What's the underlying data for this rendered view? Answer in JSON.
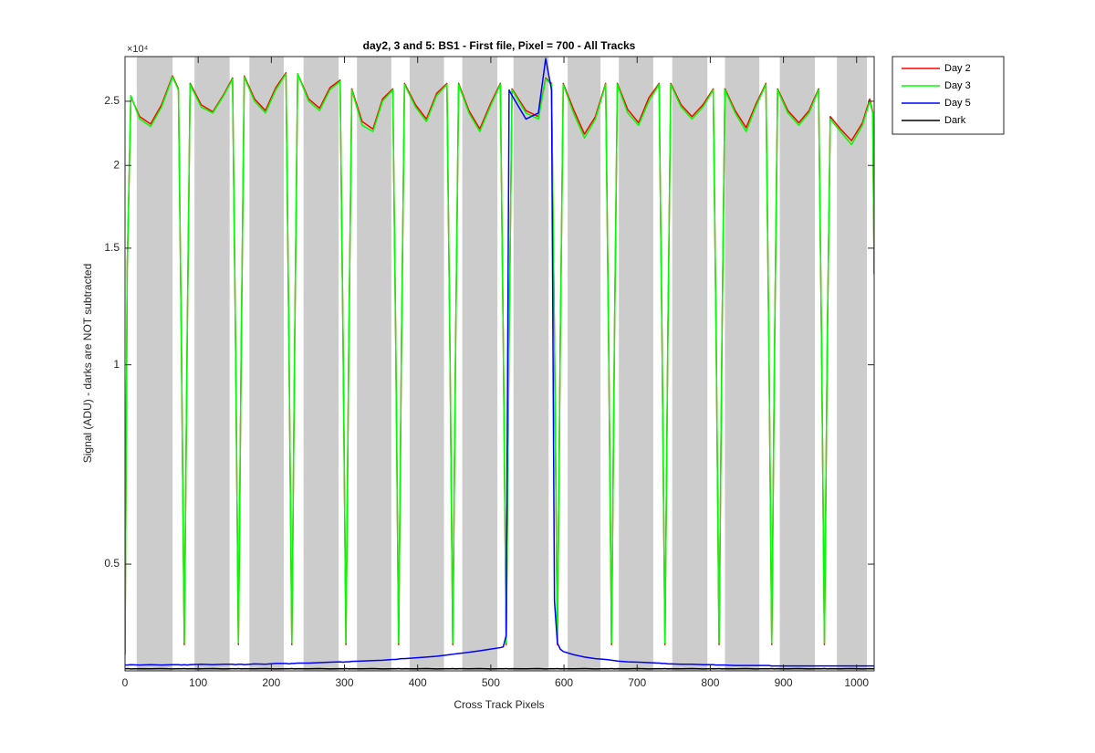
{
  "chart_data": {
    "type": "line",
    "title": "day2, 3 and 5: BS1 - First file, Pixel = 700 - All Tracks",
    "xlabel": "Cross Track Pixels",
    "ylabel": "Signal (ADU) - darks are NOT subtracted",
    "y_multiplier": "×10⁴",
    "log_y": true,
    "grid": false,
    "legend": "northeastoutside",
    "xlim": [
      0,
      1024
    ],
    "xticks": [
      0,
      100,
      200,
      300,
      400,
      500,
      600,
      700,
      800,
      900,
      1000
    ],
    "ylim": [
      3450,
      29200
    ],
    "yticks": [
      {
        "value": 5000,
        "label": "0.5"
      },
      {
        "value": 10000,
        "label": "1"
      },
      {
        "value": 15000,
        "label": "1.5"
      },
      {
        "value": 20000,
        "label": "2"
      },
      {
        "value": 25000,
        "label": "2.5"
      }
    ],
    "band_color": "#cccccc",
    "bands": [
      [
        16,
        65
      ],
      [
        95,
        143
      ],
      [
        170,
        217
      ],
      [
        244,
        292
      ],
      [
        317,
        364
      ],
      [
        389,
        436
      ],
      [
        461,
        509
      ],
      [
        531,
        579
      ],
      [
        605,
        650
      ],
      [
        675,
        722
      ],
      [
        748,
        796
      ],
      [
        820,
        867
      ],
      [
        895,
        943
      ],
      [
        973,
        1014
      ]
    ],
    "x": [
      0,
      3,
      8,
      20,
      35,
      50,
      65,
      73,
      77,
      81,
      85,
      89,
      104,
      120,
      135,
      147,
      151,
      155,
      159,
      163,
      177,
      192,
      206,
      220,
      224,
      228,
      232,
      236,
      251,
      266,
      280,
      294,
      298,
      302,
      306,
      310,
      324,
      339,
      352,
      366,
      370,
      374,
      378,
      382,
      397,
      412,
      426,
      440,
      444,
      448,
      452,
      456,
      470,
      485,
      499,
      513,
      517,
      521,
      525,
      529,
      548,
      565,
      575,
      583,
      587,
      591,
      595,
      599,
      613,
      628,
      643,
      657,
      661,
      665,
      669,
      673,
      687,
      702,
      716,
      730,
      734,
      738,
      742,
      746,
      760,
      775,
      790,
      804,
      808,
      812,
      816,
      820,
      834,
      849,
      862,
      876,
      880,
      884,
      888,
      892,
      906,
      921,
      935,
      948,
      952,
      956,
      960,
      964,
      978,
      993,
      1008,
      1018,
      1022,
      1024
    ],
    "series": [
      {
        "name": "Day 2",
        "color": "#ff0000",
        "values": [
          3650,
          14000,
          25400,
          23700,
          23100,
          24700,
          27300,
          26100,
          11000,
          3780,
          11000,
          26600,
          24700,
          24100,
          25600,
          27100,
          11000,
          3780,
          11000,
          27300,
          25200,
          24200,
          26200,
          27600,
          11000,
          3780,
          11000,
          27500,
          25200,
          24400,
          26200,
          26900,
          11000,
          3780,
          11000,
          26100,
          23300,
          22700,
          25200,
          26100,
          11000,
          3780,
          11000,
          26600,
          24700,
          23500,
          25700,
          26600,
          11000,
          3780,
          11000,
          26600,
          24200,
          22700,
          24700,
          26600,
          11000,
          3780,
          11000,
          26100,
          24200,
          23700,
          27100,
          26600,
          11000,
          3780,
          11000,
          26600,
          24300,
          22300,
          23700,
          26600,
          11000,
          3780,
          11000,
          26600,
          24300,
          23200,
          25300,
          26600,
          11000,
          3780,
          11000,
          26600,
          24700,
          23700,
          24700,
          26100,
          11000,
          3780,
          11000,
          26100,
          24200,
          22800,
          24700,
          26600,
          11000,
          3780,
          11000,
          26100,
          24200,
          23200,
          24200,
          26100,
          11000,
          3780,
          11000,
          23700,
          22700,
          21800,
          23200,
          25200,
          24100,
          13700
        ]
      },
      {
        "name": "Day 3",
        "color": "#00ff00",
        "values": [
          3650,
          14000,
          25500,
          23500,
          22900,
          24500,
          27200,
          26000,
          11000,
          3800,
          11000,
          26500,
          24500,
          24000,
          25500,
          27000,
          11000,
          3800,
          11000,
          27200,
          25000,
          24000,
          26000,
          27500,
          11000,
          3800,
          11000,
          27500,
          25000,
          24200,
          26000,
          26800,
          11000,
          3800,
          11000,
          26000,
          23000,
          22500,
          25000,
          26000,
          11000,
          3800,
          11000,
          26500,
          24500,
          23300,
          25500,
          26500,
          11000,
          3800,
          11000,
          26500,
          24000,
          22500,
          24500,
          26500,
          11000,
          3800,
          11000,
          26000,
          24000,
          23500,
          27000,
          26500,
          11000,
          3800,
          11000,
          26500,
          24000,
          22000,
          23500,
          26500,
          11000,
          3800,
          11000,
          26500,
          24000,
          23000,
          25000,
          26500,
          11000,
          3800,
          11000,
          26500,
          24500,
          23500,
          24500,
          26000,
          11000,
          3800,
          11000,
          26000,
          24000,
          22500,
          24500,
          26500,
          11000,
          3800,
          11000,
          26000,
          24000,
          23000,
          24000,
          26000,
          11000,
          3800,
          11000,
          23500,
          22500,
          21500,
          23000,
          25000,
          24000,
          13700
        ]
      },
      {
        "name": "Day 5",
        "color": "#0000ff",
        "values": [
          3520,
          3520,
          3525,
          3520,
          3525,
          3520,
          3525,
          3525,
          3520,
          3525,
          3520,
          3525,
          3530,
          3525,
          3530,
          3530,
          3525,
          3530,
          3530,
          3525,
          3535,
          3530,
          3540,
          3540,
          3535,
          3540,
          3540,
          3545,
          3545,
          3550,
          3555,
          3560,
          3555,
          3560,
          3560,
          3565,
          3570,
          3575,
          3580,
          3590,
          3590,
          3595,
          3600,
          3600,
          3610,
          3620,
          3630,
          3645,
          3650,
          3655,
          3660,
          3665,
          3680,
          3700,
          3720,
          3740,
          3750,
          3900,
          26000,
          25500,
          23500,
          24000,
          29000,
          26000,
          4400,
          3800,
          3720,
          3690,
          3650,
          3620,
          3600,
          3590,
          3585,
          3580,
          3575,
          3570,
          3560,
          3555,
          3550,
          3545,
          3540,
          3540,
          3535,
          3535,
          3530,
          3530,
          3525,
          3525,
          3520,
          3520,
          3520,
          3520,
          3515,
          3515,
          3515,
          3515,
          3515,
          3510,
          3510,
          3510,
          3510,
          3510,
          3510,
          3510,
          3510,
          3510,
          3510,
          3510,
          3510,
          3510,
          3510,
          3510,
          3510,
          3510
        ]
      },
      {
        "name": "Dark",
        "color": "#000000",
        "values": [
          3475,
          3478,
          3474,
          3476,
          3475,
          3477,
          3474,
          3476,
          3475,
          3478,
          3474,
          3476,
          3475,
          3477,
          3474,
          3476,
          3475,
          3478,
          3474,
          3476,
          3475,
          3477,
          3474,
          3476,
          3475,
          3478,
          3474,
          3476,
          3475,
          3477,
          3474,
          3476,
          3475,
          3478,
          3474,
          3476,
          3475,
          3477,
          3474,
          3476,
          3475,
          3478,
          3474,
          3476,
          3475,
          3477,
          3474,
          3476,
          3475,
          3478,
          3474,
          3476,
          3475,
          3477,
          3474,
          3476,
          3475,
          3478,
          3474,
          3476,
          3475,
          3477,
          3474,
          3476,
          3475,
          3478,
          3474,
          3476,
          3475,
          3477,
          3474,
          3476,
          3475,
          3478,
          3474,
          3476,
          3475,
          3477,
          3474,
          3476,
          3475,
          3478,
          3474,
          3476,
          3475,
          3477,
          3474,
          3476,
          3475,
          3478,
          3474,
          3476,
          3475,
          3477,
          3474,
          3476,
          3475,
          3478,
          3474,
          3476,
          3475,
          3477,
          3474,
          3476,
          3475,
          3478,
          3474,
          3476,
          3475,
          3477,
          3474,
          3476,
          3475,
          3478
        ]
      }
    ]
  }
}
